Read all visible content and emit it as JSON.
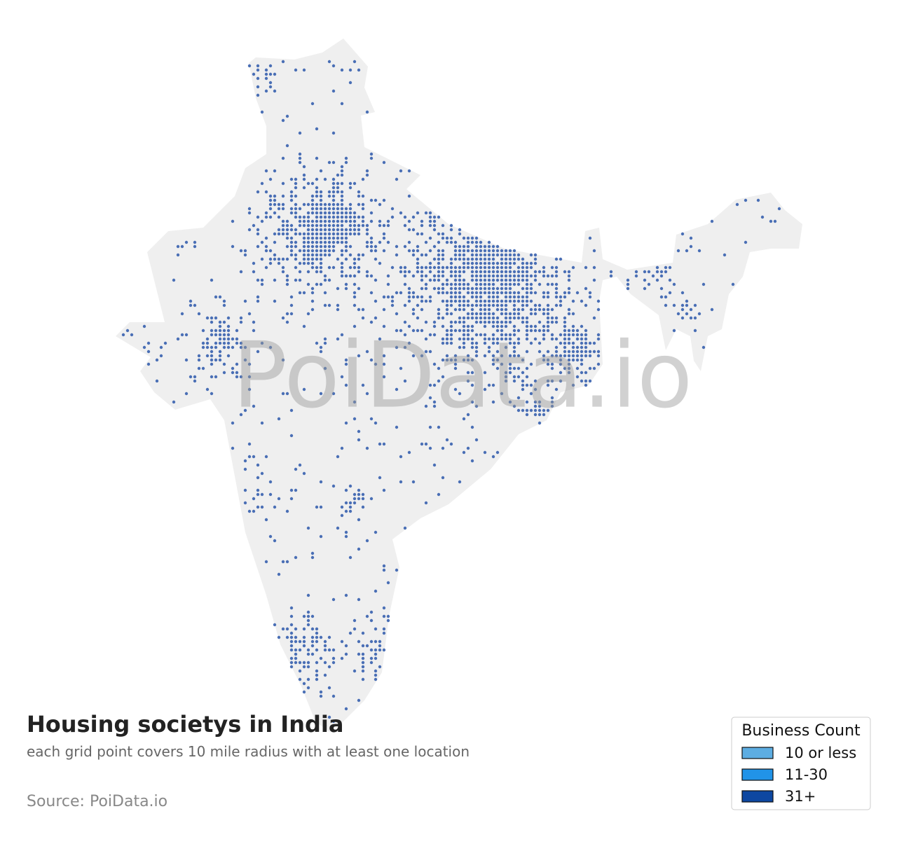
{
  "title": "Housing societys in India",
  "subtitle": "each grid point covers 10 mile radius with at least one location",
  "source": "Source: PoiData.io",
  "watermark": "PoiData.io",
  "dot_color": "#4a6fb5",
  "legend": {
    "title": "Business Count",
    "entries": [
      {
        "label": "10 or less",
        "color": "#5dade2"
      },
      {
        "label": "11-30",
        "color": "#2193e8"
      },
      {
        "label": "31+",
        "color": "#0d47a1"
      }
    ]
  }
}
